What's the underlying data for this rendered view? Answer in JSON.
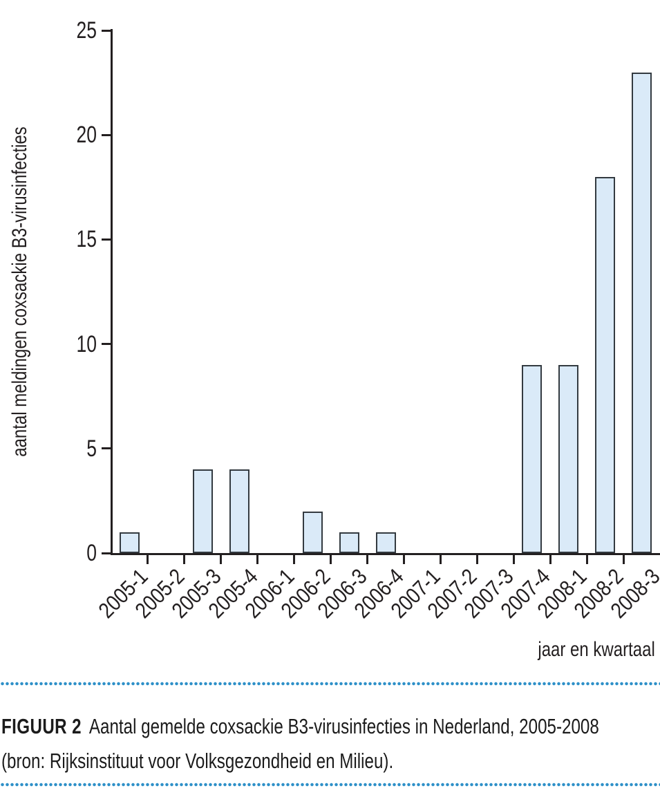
{
  "chart_data": {
    "type": "bar",
    "categories": [
      "2005-1",
      "2005-2",
      "2005-3",
      "2005-4",
      "2006-1",
      "2006-2",
      "2006-3",
      "2006-4",
      "2007-1",
      "2007-2",
      "2007-3",
      "2007-4",
      "2008-1",
      "2008-2",
      "2008-3"
    ],
    "values": [
      1,
      0,
      4,
      4,
      0,
      2,
      1,
      1,
      0,
      0,
      0,
      9,
      9,
      18,
      23
    ],
    "title": "",
    "xlabel": "jaar en kwartaal",
    "ylabel": "aantal meldingen coxsackie B3-virusinfecties",
    "ylim": [
      0,
      25
    ],
    "yticks": [
      0,
      5,
      10,
      15,
      20,
      25
    ],
    "grid": "off",
    "legend": "none",
    "bar_fill": "#daeaf8",
    "bar_border": "#333a40",
    "axis_color": "#231f20"
  },
  "caption": {
    "label": "FIGUUR 2",
    "line1": "Aantal gemelde coxsackie B3-virusinfecties in Nederland, 2005-2008",
    "line2": "(bron: Rijksinstituut voor Volksgezondheid en Milieu)."
  },
  "divider_color": "#2e90c8"
}
